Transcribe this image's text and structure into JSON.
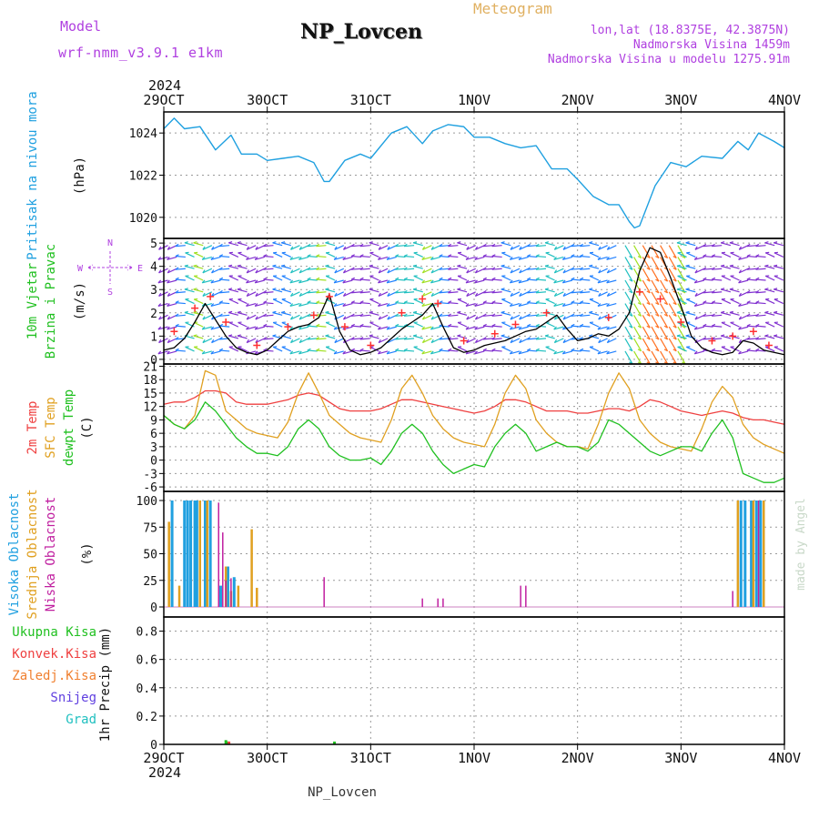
{
  "header": {
    "model_label": "Model",
    "model_version": "wrf-nmm_v3.9.1 e1km",
    "station_name": "NP_Lovcen",
    "meteogram_label": "Meteogram",
    "coords": "lon,lat (18.8375E, 42.3875N)",
    "elevation": "Nadmorska Visina 1459m",
    "model_elevation": "Nadmorska Visina u modelu 1275.91m"
  },
  "footer": {
    "station_name": "NP_Lovcen",
    "credit": "made by Angel"
  },
  "time_axis": {
    "year": "2024",
    "tick_labels": [
      "29OCT",
      "30OCT",
      "31OCT",
      "1NOV",
      "2NOV",
      "3NOV",
      "4NOV"
    ]
  },
  "colors": {
    "pressure": "#1fa0e0",
    "wind_speed": "#000000",
    "wind_gust_marker": "#ff3030",
    "temp_2m": "#ef4040",
    "temp_sfc": "#e0a020",
    "dewpoint": "#20c020",
    "cloud_high": "#20a0e0",
    "cloud_mid": "#e0a020",
    "cloud_low": "#c020a0",
    "grid": "#9a9a9a",
    "header_purple": "#b040e0",
    "header_orange": "#e0b060"
  },
  "chart_data": [
    {
      "type": "line",
      "panel": "pressure",
      "ylabel": "Pritisak na nivou mora",
      "unit": "(hPa)",
      "yticks": [
        1020,
        1022,
        1024
      ],
      "ylim": [
        1019,
        1025
      ],
      "x_days": [
        0,
        0.1,
        0.2,
        0.35,
        0.5,
        0.65,
        0.75,
        0.9,
        1.0,
        1.15,
        1.3,
        1.45,
        1.55,
        1.6,
        1.75,
        1.9,
        2.0,
        2.2,
        2.35,
        2.5,
        2.6,
        2.75,
        2.9,
        3.0,
        3.15,
        3.3,
        3.45,
        3.6,
        3.75,
        3.9,
        4.0,
        4.15,
        4.3,
        4.4,
        4.5,
        4.55,
        4.6,
        4.75,
        4.9,
        5.05,
        5.2,
        5.4,
        5.55,
        5.65,
        5.75,
        5.9,
        6.0
      ],
      "values": [
        1024.2,
        1024.7,
        1024.2,
        1024.3,
        1023.2,
        1023.9,
        1023.0,
        1023.0,
        1022.7,
        1022.8,
        1022.9,
        1022.6,
        1021.7,
        1021.7,
        1022.7,
        1023.0,
        1022.8,
        1024.0,
        1024.3,
        1023.5,
        1024.1,
        1024.4,
        1024.3,
        1023.8,
        1023.8,
        1023.5,
        1023.3,
        1023.4,
        1022.3,
        1022.3,
        1021.8,
        1021.0,
        1020.6,
        1020.6,
        1019.8,
        1019.5,
        1019.6,
        1021.5,
        1022.6,
        1022.4,
        1022.9,
        1022.8,
        1023.6,
        1023.2,
        1024.0,
        1023.6,
        1023.3
      ]
    },
    {
      "type": "line",
      "panel": "wind",
      "ylabel": [
        "10m Vjetar",
        "Brzina i Pravac"
      ],
      "unit": "(m/s)",
      "compass_labels": {
        "north": "N",
        "south": "S",
        "west": "W",
        "east": "E"
      },
      "yticks": [
        0,
        1,
        2,
        3,
        4,
        5
      ],
      "ylim": [
        -0.2,
        5.2
      ],
      "series": [
        {
          "name": "wind speed",
          "x_days": [
            0,
            0.1,
            0.2,
            0.3,
            0.4,
            0.5,
            0.6,
            0.7,
            0.8,
            0.9,
            1.0,
            1.1,
            1.2,
            1.3,
            1.4,
            1.5,
            1.6,
            1.7,
            1.8,
            1.9,
            2.0,
            2.1,
            2.2,
            2.3,
            2.4,
            2.5,
            2.6,
            2.7,
            2.8,
            2.9,
            3.0,
            3.1,
            3.2,
            3.3,
            3.4,
            3.5,
            3.6,
            3.7,
            3.8,
            3.9,
            4.0,
            4.1,
            4.2,
            4.3,
            4.4,
            4.5,
            4.6,
            4.7,
            4.8,
            4.9,
            5.0,
            5.1,
            5.2,
            5.3,
            5.4,
            5.5,
            5.6,
            5.7,
            5.8,
            5.9,
            6.0
          ],
          "values": [
            0.4,
            0.5,
            0.9,
            1.6,
            2.4,
            1.7,
            1.0,
            0.5,
            0.3,
            0.2,
            0.4,
            0.8,
            1.2,
            1.4,
            1.5,
            1.8,
            2.8,
            1.2,
            0.4,
            0.2,
            0.3,
            0.5,
            0.9,
            1.3,
            1.6,
            1.9,
            2.4,
            1.4,
            0.5,
            0.3,
            0.4,
            0.6,
            0.7,
            0.8,
            1.0,
            1.2,
            1.3,
            1.6,
            1.9,
            1.3,
            0.8,
            0.9,
            1.1,
            1.0,
            1.3,
            2.0,
            3.8,
            4.8,
            4.6,
            3.5,
            2.3,
            1.0,
            0.5,
            0.3,
            0.2,
            0.3,
            0.8,
            0.7,
            0.4,
            0.3,
            0.2
          ]
        },
        {
          "name": "gust",
          "x_days": [
            0.1,
            0.3,
            0.45,
            0.6,
            0.9,
            1.2,
            1.45,
            1.6,
            1.75,
            2.0,
            2.3,
            2.5,
            2.65,
            2.9,
            3.2,
            3.4,
            3.7,
            4.3,
            4.6,
            4.8,
            5.0,
            5.3,
            5.5,
            5.7,
            5.85
          ],
          "values": [
            1.2,
            2.2,
            2.7,
            1.6,
            0.6,
            1.4,
            1.9,
            2.7,
            1.4,
            0.6,
            2.0,
            2.6,
            2.4,
            0.8,
            1.1,
            1.5,
            2.0,
            1.8,
            2.9,
            2.6,
            1.6,
            0.8,
            1.0,
            1.2,
            0.6
          ]
        }
      ]
    },
    {
      "type": "line",
      "panel": "temperature",
      "ylabel": [
        "2m Temp",
        "SFC Temp",
        "dewpt Temp"
      ],
      "unit": "(C)",
      "yticks": [
        -6,
        -3,
        0,
        3,
        6,
        9,
        12,
        15,
        18,
        21
      ],
      "ylim": [
        -7,
        21.5
      ],
      "x_days": [
        0,
        0.1,
        0.2,
        0.3,
        0.4,
        0.5,
        0.6,
        0.7,
        0.8,
        0.9,
        1.0,
        1.1,
        1.2,
        1.3,
        1.4,
        1.5,
        1.6,
        1.7,
        1.8,
        1.9,
        2.0,
        2.1,
        2.2,
        2.3,
        2.4,
        2.5,
        2.6,
        2.7,
        2.8,
        2.9,
        3.0,
        3.1,
        3.2,
        3.3,
        3.4,
        3.5,
        3.6,
        3.7,
        3.8,
        3.9,
        4.0,
        4.1,
        4.2,
        4.3,
        4.4,
        4.5,
        4.6,
        4.7,
        4.8,
        4.9,
        5.0,
        5.1,
        5.2,
        5.3,
        5.4,
        5.5,
        5.6,
        5.7,
        5.8,
        5.9,
        6.0
      ],
      "series": [
        {
          "name": "2m Temp",
          "values": [
            12.5,
            13,
            13,
            14,
            15.5,
            15.5,
            15,
            13,
            12.5,
            12.5,
            12.5,
            13,
            13.5,
            14.5,
            15,
            14.5,
            13,
            11.5,
            11,
            11,
            11,
            11.5,
            12.5,
            13.5,
            13.5,
            13,
            12.5,
            12,
            11.5,
            11,
            10.5,
            11,
            12,
            13.5,
            13.5,
            13,
            12,
            11,
            11,
            11,
            10.5,
            10.5,
            11,
            11.5,
            11.5,
            11,
            12,
            13.5,
            13,
            12,
            11,
            10.5,
            10,
            10.5,
            11,
            10.5,
            9.5,
            9,
            9,
            8.5,
            8
          ]
        },
        {
          "name": "SFC Temp",
          "values": [
            10,
            8,
            7,
            10,
            20,
            19,
            11,
            9,
            7,
            6,
            5.5,
            5,
            8.5,
            15,
            19.5,
            15,
            10,
            8,
            6,
            5,
            4.5,
            4,
            9,
            16,
            19,
            15,
            10,
            7,
            5,
            4,
            3.5,
            3,
            8,
            15,
            19,
            16,
            9,
            6,
            4,
            3,
            3,
            2.5,
            8,
            15,
            19.5,
            16,
            9,
            6,
            4,
            3,
            2.5,
            2,
            7,
            13,
            16.5,
            14,
            8,
            5,
            3.5,
            2.5,
            1.5
          ]
        },
        {
          "name": "dewpt Temp",
          "values": [
            10,
            8,
            7,
            9,
            13,
            11,
            8,
            5,
            3,
            1.5,
            1.5,
            1,
            3,
            7,
            9,
            7,
            3,
            1,
            0,
            0,
            0.5,
            -1,
            2,
            6,
            8,
            6,
            2,
            -1,
            -3,
            -2,
            -1,
            -1.5,
            3,
            6,
            8,
            6,
            2,
            3,
            4,
            3,
            3,
            2,
            4,
            9,
            8,
            6,
            4,
            2,
            1,
            2,
            3,
            3,
            2,
            6,
            9,
            5,
            -3,
            -4,
            -5,
            -5,
            -4
          ]
        }
      ]
    },
    {
      "type": "bar",
      "panel": "cloud",
      "ylabel": [
        "Visoka Oblacnost",
        "Srednja Oblacnost",
        "Niska Oblacnost"
      ],
      "unit": "(%)",
      "yticks": [
        0,
        25,
        50,
        75,
        100
      ],
      "ylim": [
        0,
        100
      ],
      "series": [
        {
          "name": "Visoka Oblacnost",
          "x_days": [
            0.08,
            0.2,
            0.23,
            0.26,
            0.3,
            0.32,
            0.4,
            0.45,
            0.55,
            0.62,
            0.68,
            5.58,
            5.62,
            5.68,
            5.73,
            5.77
          ],
          "values": [
            100,
            100,
            100,
            100,
            100,
            100,
            100,
            100,
            20,
            38,
            28,
            100,
            100,
            100,
            100,
            100
          ]
        },
        {
          "name": "Srednja Oblacnost",
          "x_days": [
            0.05,
            0.15,
            0.35,
            0.42,
            0.6,
            0.65,
            0.72,
            0.85,
            0.9,
            5.55,
            5.7,
            5.8
          ],
          "values": [
            80,
            20,
            100,
            100,
            38,
            15,
            20,
            73,
            18,
            100,
            100,
            100
          ]
        },
        {
          "name": "Niska Oblacnost",
          "x_days": [
            0.53,
            0.57,
            0.6,
            0.65,
            1.55,
            2.5,
            2.65,
            2.7,
            3.45,
            3.5,
            5.5,
            5.75
          ],
          "values": [
            98,
            70,
            25,
            27,
            28,
            8,
            8,
            8,
            20,
            20,
            15,
            100
          ]
        }
      ]
    },
    {
      "type": "bar",
      "panel": "precip",
      "ylabel": "1hr Precip",
      "unit": "(mm)",
      "legend": [
        "Ukupna Kisa",
        "Konvek.Kisa",
        "Zaledj.Kisa",
        "Snijeg",
        "Grad"
      ],
      "yticks": [
        0,
        0.2,
        0.4,
        0.6,
        0.8
      ],
      "ylim": [
        0,
        0.9
      ],
      "series": [
        {
          "name": "Ukupna Kisa",
          "x_days": [
            0.6,
            0.62,
            1.65
          ],
          "values": [
            0.03,
            0.02,
            0.02
          ]
        },
        {
          "name": "Konvek.Kisa",
          "x_days": [
            0.63
          ],
          "values": [
            0.02
          ]
        }
      ]
    }
  ]
}
